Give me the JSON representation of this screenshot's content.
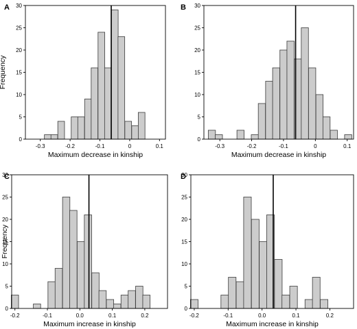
{
  "chart_data": [
    {
      "type": "bar",
      "panel_label": "A",
      "xlabel": "Maximum decrease in kinship",
      "ylabel": "Frequency",
      "xlim": [
        -0.35,
        0.12
      ],
      "ylim": [
        0,
        30
      ],
      "xticks": [
        -0.3,
        -0.2,
        -0.1,
        0.0,
        0.1
      ],
      "xtick_labels": [
        "-0.3",
        "-0.2",
        "-0.1",
        "0",
        "0.1"
      ],
      "yticks": [
        0,
        5,
        10,
        15,
        20,
        25,
        30
      ],
      "bin_width": 0.0225,
      "bins": [
        {
          "x": -0.275,
          "value": 1
        },
        {
          "x": -0.253,
          "value": 1
        },
        {
          "x": -0.23,
          "value": 4
        },
        {
          "x": -0.185,
          "value": 5
        },
        {
          "x": -0.163,
          "value": 5
        },
        {
          "x": -0.14,
          "value": 9
        },
        {
          "x": -0.118,
          "value": 16
        },
        {
          "x": -0.095,
          "value": 24
        },
        {
          "x": -0.073,
          "value": 16
        },
        {
          "x": -0.05,
          "value": 29
        },
        {
          "x": -0.028,
          "value": 23
        },
        {
          "x": -0.005,
          "value": 4
        },
        {
          "x": 0.018,
          "value": 3
        },
        {
          "x": 0.04,
          "value": 6
        }
      ],
      "reference_line": -0.062
    },
    {
      "type": "bar",
      "panel_label": "B",
      "xlabel": "Maximum decrease in kinship",
      "ylabel": "",
      "xlim": [
        -0.35,
        0.12
      ],
      "ylim": [
        0,
        30
      ],
      "xticks": [
        -0.3,
        -0.2,
        -0.1,
        0.0,
        0.1
      ],
      "xtick_labels": [
        "-0.3",
        "-0.2",
        "-0.1",
        "0",
        "0.1"
      ],
      "yticks": [
        0,
        5,
        10,
        15,
        20,
        25,
        30
      ],
      "bin_width": 0.0225,
      "bins": [
        {
          "x": -0.325,
          "value": 2
        },
        {
          "x": -0.303,
          "value": 1
        },
        {
          "x": -0.235,
          "value": 2
        },
        {
          "x": -0.19,
          "value": 1
        },
        {
          "x": -0.168,
          "value": 8
        },
        {
          "x": -0.145,
          "value": 13
        },
        {
          "x": -0.123,
          "value": 16
        },
        {
          "x": -0.1,
          "value": 20
        },
        {
          "x": -0.078,
          "value": 22
        },
        {
          "x": -0.055,
          "value": 18
        },
        {
          "x": -0.033,
          "value": 25
        },
        {
          "x": -0.01,
          "value": 16
        },
        {
          "x": 0.013,
          "value": 10
        },
        {
          "x": 0.035,
          "value": 5
        },
        {
          "x": 0.058,
          "value": 2
        },
        {
          "x": 0.103,
          "value": 1
        }
      ],
      "reference_line": -0.062
    },
    {
      "type": "bar",
      "panel_label": "C",
      "xlabel": "Maximum increase in kinship",
      "ylabel": "Frequency",
      "xlim": [
        -0.21,
        0.27
      ],
      "ylim": [
        0,
        30
      ],
      "xticks": [
        -0.2,
        -0.1,
        0.0,
        0.1,
        0.2
      ],
      "xtick_labels": [
        "-0.2",
        "-0.1",
        "0.0",
        "0.1",
        "0.2"
      ],
      "yticks": [
        0,
        5,
        10,
        15,
        20,
        25,
        30
      ],
      "bin_width": 0.0225,
      "bins": [
        {
          "x": -0.2,
          "value": 3
        },
        {
          "x": -0.132,
          "value": 1
        },
        {
          "x": -0.087,
          "value": 6
        },
        {
          "x": -0.065,
          "value": 9
        },
        {
          "x": -0.042,
          "value": 25
        },
        {
          "x": -0.02,
          "value": 22
        },
        {
          "x": 0.003,
          "value": 15
        },
        {
          "x": 0.025,
          "value": 21
        },
        {
          "x": 0.048,
          "value": 8
        },
        {
          "x": 0.07,
          "value": 4
        },
        {
          "x": 0.093,
          "value": 2
        },
        {
          "x": 0.115,
          "value": 1
        },
        {
          "x": 0.138,
          "value": 3
        },
        {
          "x": 0.16,
          "value": 4
        },
        {
          "x": 0.183,
          "value": 5
        },
        {
          "x": 0.205,
          "value": 3
        }
      ],
      "reference_line": 0.028
    },
    {
      "type": "bar",
      "panel_label": "D",
      "xlabel": "Maximum increase in kinship",
      "ylabel": "",
      "xlim": [
        -0.21,
        0.27
      ],
      "ylim": [
        0,
        30
      ],
      "xticks": [
        -0.2,
        -0.1,
        0.0,
        0.1,
        0.2
      ],
      "xtick_labels": [
        "-0.2",
        "-0.1",
        "0.0",
        "0.1",
        "0.2"
      ],
      "yticks": [
        0,
        5,
        10,
        15,
        20,
        25,
        30
      ],
      "bin_width": 0.0225,
      "bins": [
        {
          "x": -0.2,
          "value": 2
        },
        {
          "x": -0.11,
          "value": 3
        },
        {
          "x": -0.088,
          "value": 7
        },
        {
          "x": -0.065,
          "value": 6
        },
        {
          "x": -0.043,
          "value": 25
        },
        {
          "x": -0.02,
          "value": 20
        },
        {
          "x": 0.003,
          "value": 15
        },
        {
          "x": 0.025,
          "value": 21
        },
        {
          "x": 0.048,
          "value": 11
        },
        {
          "x": 0.07,
          "value": 3
        },
        {
          "x": 0.093,
          "value": 5
        },
        {
          "x": 0.138,
          "value": 2
        },
        {
          "x": 0.16,
          "value": 7
        },
        {
          "x": 0.183,
          "value": 2
        }
      ],
      "reference_line": 0.033
    }
  ],
  "colors": {
    "bar_fill": "#cccccc",
    "bar_stroke": "#3a3a3a",
    "axis": "#000000",
    "reference_line": "#000000"
  }
}
